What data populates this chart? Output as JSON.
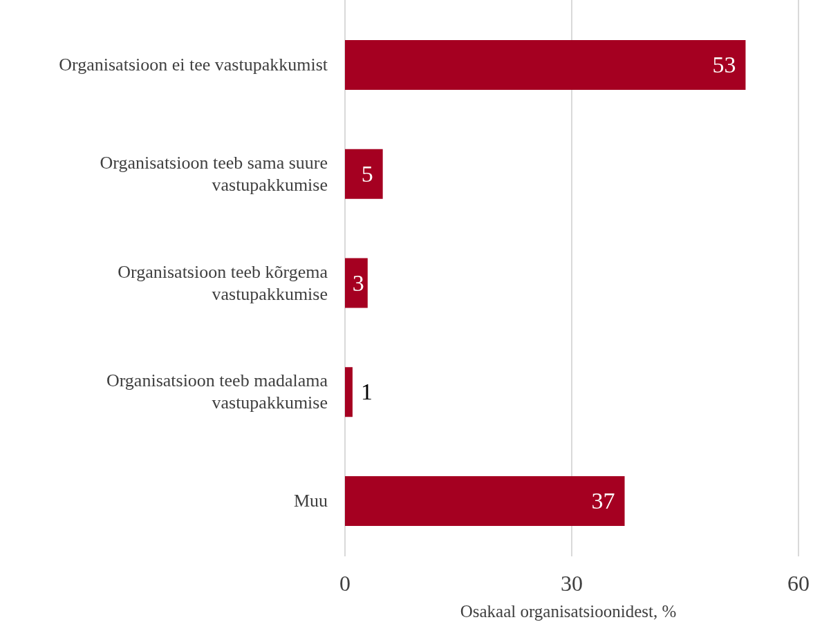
{
  "chart_data": {
    "type": "bar",
    "orientation": "horizontal",
    "categories": [
      "Organisatsioon ei tee vastupakkumist",
      "Organisatsioon teeb sama suure vastupakkumise",
      "Organisatsioon teeb kõrgema vastupakkumise",
      "Organisatsioon teeb madalama vastupakkumise",
      "Muu"
    ],
    "values": [
      53,
      5,
      3,
      1,
      37
    ],
    "color": "#a50021",
    "xlim": [
      0,
      60
    ],
    "xticks": [
      0,
      30,
      60
    ],
    "xlabel": "Osakaal organisatsioonidest, %",
    "grid": "x",
    "data_labels": true
  }
}
